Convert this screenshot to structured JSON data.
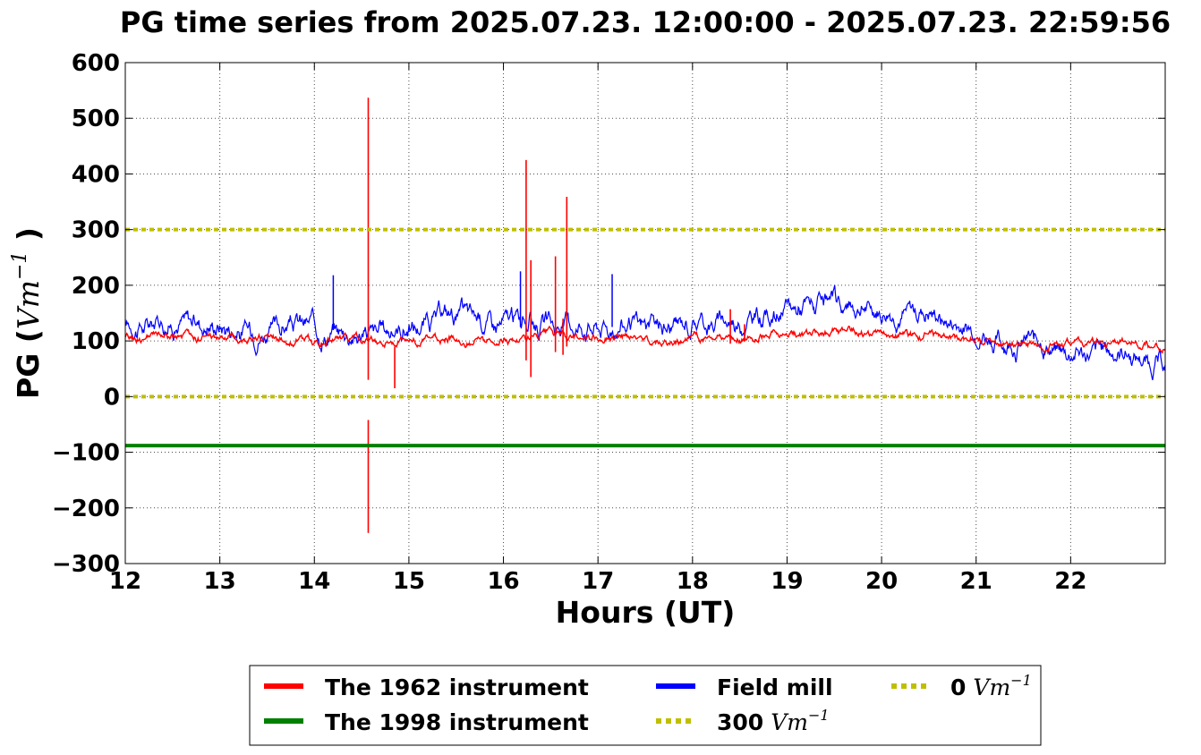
{
  "chart_data": {
    "type": "line",
    "title": "PG time series from 2025.07.23. 12:00:00 - 2025.07.23. 22:59:56",
    "xlabel": "Hours (UT)",
    "ylabel_prefix": "PG (",
    "ylabel_math": "Vm",
    "ylabel_exponent": "−1",
    "ylabel_suffix": " )",
    "xlim": [
      12,
      23
    ],
    "ylim": [
      -300,
      600
    ],
    "grid": true,
    "legend_placement": "below plot",
    "x_ticks": [
      "12",
      "13",
      "14",
      "15",
      "16",
      "17",
      "18",
      "19",
      "20",
      "21",
      "22"
    ],
    "y_ticks": [
      "600",
      "500",
      "400",
      "300",
      "200",
      "100",
      "0",
      "−100",
      "−200",
      "−300"
    ],
    "series": [
      {
        "name": "The 1962 instrument",
        "color": "#ff0000",
        "baseline_x": [
          12.0,
          12.5,
          13.0,
          13.5,
          14.0,
          14.5,
          15.0,
          15.5,
          16.0,
          16.5,
          17.0,
          17.5,
          18.0,
          18.5,
          19.0,
          19.3,
          19.5,
          19.8,
          20.1,
          20.4,
          20.6,
          20.9,
          21.2,
          21.5,
          21.8,
          22.2,
          22.6,
          23.0
        ],
        "baseline_y": [
          103,
          104,
          103,
          104,
          103,
          104,
          103,
          104,
          104,
          103,
          104,
          104,
          104,
          105,
          110,
          113,
          114,
          110,
          104,
          112,
          111,
          106,
          98,
          97,
          96,
          93,
          91,
          90
        ],
        "spikes": [
          {
            "x": 14.57,
            "high": 537,
            "low": 30
          },
          {
            "x": 14.57,
            "high": -42,
            "low": -245
          },
          {
            "x": 14.85,
            "high": 90,
            "low": 15
          },
          {
            "x": 16.24,
            "high": 425,
            "low": 65
          },
          {
            "x": 16.29,
            "high": 245,
            "low": 35
          },
          {
            "x": 16.55,
            "high": 252,
            "low": 80
          },
          {
            "x": 16.63,
            "high": 140,
            "low": 75
          },
          {
            "x": 16.67,
            "high": 359,
            "low": 90
          },
          {
            "x": 18.4,
            "high": 157,
            "low": 95
          },
          {
            "x": 18.55,
            "high": 130,
            "low": 100
          }
        ]
      },
      {
        "name": "The 1998 instrument",
        "color": "#008000",
        "x": [
          12,
          23
        ],
        "y": [
          -88,
          -88
        ]
      },
      {
        "name": "Field mill",
        "color": "#0000ff",
        "baseline_x": [
          12.0,
          12.5,
          13.0,
          13.3,
          13.7,
          14.0,
          14.5,
          15.0,
          15.3,
          15.6,
          16.0,
          16.3,
          16.6,
          17.0,
          17.5,
          18.0,
          18.5,
          19.0,
          19.2,
          19.5,
          19.8,
          20.0,
          20.2,
          20.5,
          20.8,
          21.0,
          21.3,
          21.6,
          22.0,
          22.3,
          22.6,
          23.0
        ],
        "baseline_y": [
          128,
          132,
          127,
          120,
          135,
          126,
          118,
          125,
          122,
          138,
          143,
          138,
          132,
          142,
          132,
          128,
          135,
          150,
          168,
          158,
          148,
          140,
          135,
          150,
          128,
          112,
          90,
          95,
          82,
          77,
          75,
          68
        ],
        "spikes": [
          {
            "x": 14.2,
            "high": 218,
            "low": 120
          },
          {
            "x": 16.18,
            "high": 225,
            "low": 125
          },
          {
            "x": 16.67,
            "high": 226,
            "low": 120
          },
          {
            "x": 17.15,
            "high": 220,
            "low": 125
          }
        ]
      },
      {
        "name": "300",
        "name_math": "Vm",
        "name_exponent": "−1",
        "color": "#bfbf00",
        "x": [
          12,
          23
        ],
        "y": [
          300,
          300
        ]
      },
      {
        "name": "0",
        "name_math": "Vm",
        "name_exponent": "−1",
        "color": "#bfbf00",
        "x": [
          12,
          23
        ],
        "y": [
          0,
          0
        ]
      }
    ]
  }
}
